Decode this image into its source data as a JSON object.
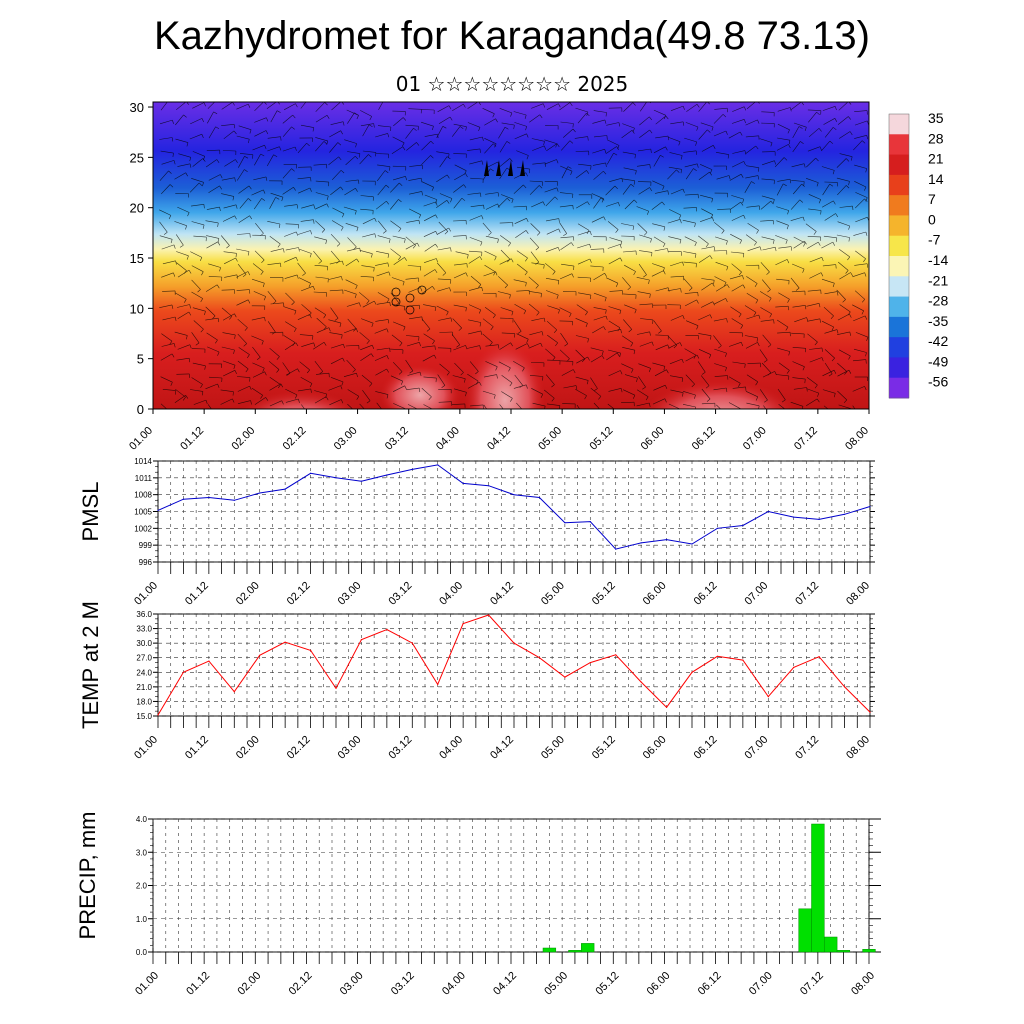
{
  "title": "Kazhydromet for Karaganda(49.8 73.13)",
  "subtitle": "01 ☆☆☆☆☆☆☆☆ 2025",
  "colors": {
    "pmsl_line": "#0000cc",
    "temp_line": "#ff0000",
    "precip_bar": "#00e000",
    "grid": "#333333",
    "colorbar": [
      "#f5d7dc",
      "#e8353a",
      "#d61e1e",
      "#e8401b",
      "#f07b1e",
      "#f5b42c",
      "#f7e64a",
      "#fbf5b5",
      "#c7e6f5",
      "#4fb3ea",
      "#1a74d9",
      "#2040e0",
      "#3a22e0",
      "#7a2ce6"
    ]
  },
  "chart_data": [
    {
      "type": "heatmap",
      "title": "Kazhydromet for Karaganda(49.8 73.13)",
      "subtitle": "01 ☆☆☆☆☆☆☆☆ 2025",
      "x_ticks": [
        "01.00",
        "01.12",
        "02.00",
        "02.12",
        "03.00",
        "03.12",
        "04.00",
        "04.12",
        "05.00",
        "05.12",
        "06.00",
        "06.12",
        "07.00",
        "07.12",
        "08.00"
      ],
      "y_ticks": [
        "0",
        "5",
        "10",
        "15",
        "20",
        "25",
        "30"
      ],
      "ylim": [
        0,
        30.5
      ],
      "colorbar_labels": [
        "35",
        "28",
        "21",
        "14",
        "7",
        "0",
        "-7",
        "-14",
        "-21",
        "-28",
        "-35",
        "-42",
        "-49",
        "-56"
      ],
      "overlay": "wind barbs"
    },
    {
      "type": "line",
      "ylabel": "PMSL",
      "ylim": [
        996,
        1014
      ],
      "y_ticks": [
        "1014",
        "1011",
        "1008",
        "1005",
        "1002",
        "999",
        "996"
      ],
      "x_ticks": [
        "01.00",
        "01.12",
        "02.00",
        "02.12",
        "03.00",
        "03.12",
        "04.00",
        "04.12",
        "05.00",
        "05.12",
        "06.00",
        "06.12",
        "07.00",
        "07.12",
        "08.00"
      ],
      "x": [
        0,
        1,
        2,
        3,
        4,
        5,
        6,
        7,
        8,
        9,
        10,
        11,
        12,
        13,
        14,
        15,
        16,
        17,
        18,
        19,
        20,
        21,
        22,
        23,
        24,
        25,
        26,
        27,
        28
      ],
      "values": [
        1005.2,
        1007.2,
        1007.5,
        1007.0,
        1008.3,
        1009.0,
        1011.8,
        1011.0,
        1010.4,
        1011.5,
        1012.5,
        1013.3,
        1010.0,
        1009.6,
        1008.0,
        1007.5,
        1003.0,
        1003.2,
        998.3,
        999.4,
        1000.0,
        999.2,
        1002.0,
        1002.5,
        1005.0,
        1004.0,
        1003.6,
        1004.5,
        1005.9
      ]
    },
    {
      "type": "line",
      "ylabel": "TEMP at 2 M",
      "ylim": [
        15,
        36
      ],
      "y_ticks": [
        "36.0",
        "33.0",
        "30.0",
        "27.0",
        "24.0",
        "21.0",
        "18.0",
        "15.0"
      ],
      "x_ticks": [
        "01.00",
        "01.12",
        "02.00",
        "02.12",
        "03.00",
        "03.12",
        "04.00",
        "04.12",
        "05.00",
        "05.12",
        "06.00",
        "06.12",
        "07.00",
        "07.12",
        "08.00"
      ],
      "x": [
        0,
        1,
        2,
        3,
        4,
        5,
        6,
        7,
        8,
        9,
        10,
        11,
        12,
        13,
        14,
        15,
        16,
        17,
        18,
        19,
        20,
        21,
        22,
        23,
        24,
        25,
        26,
        27,
        28
      ],
      "values": [
        15.2,
        24.0,
        26.3,
        20.0,
        27.5,
        30.2,
        28.5,
        20.7,
        30.7,
        32.8,
        30.0,
        21.5,
        34.0,
        35.8,
        30.0,
        27.0,
        23.0,
        26.0,
        27.6,
        22.0,
        16.8,
        24.0,
        27.3,
        26.5,
        19.0,
        25.0,
        27.2,
        21.0,
        15.8
      ],
      "x_precise": [
        0,
        0.5,
        1,
        1.5,
        2,
        2.5,
        3,
        3.5,
        4,
        4.5,
        5,
        5.5,
        6,
        6.5,
        7,
        7.5,
        8,
        8.5,
        9,
        9.5,
        10,
        10.5,
        11,
        11.5,
        12,
        12.5,
        13,
        13.5,
        14
      ]
    },
    {
      "type": "bar",
      "ylabel": "PRECIP, mm",
      "ylim": [
        0,
        4.0
      ],
      "y_ticks": [
        "4.0",
        "3.0",
        "2.0",
        "1.0",
        "0.0"
      ],
      "x_ticks": [
        "01.00",
        "01.12",
        "02.00",
        "02.12",
        "03.00",
        "03.12",
        "04.00",
        "04.12",
        "05.00",
        "05.12",
        "06.00",
        "06.12",
        "07.00",
        "07.12",
        "08.00"
      ],
      "bars": [
        {
          "x": 7.75,
          "value": 0.12
        },
        {
          "x": 8.25,
          "value": 0.05
        },
        {
          "x": 8.5,
          "value": 0.26
        },
        {
          "x": 12.75,
          "value": 1.3
        },
        {
          "x": 13.0,
          "value": 3.85
        },
        {
          "x": 13.25,
          "value": 0.45
        },
        {
          "x": 13.5,
          "value": 0.05
        },
        {
          "x": 14.0,
          "value": 0.08
        }
      ]
    }
  ]
}
